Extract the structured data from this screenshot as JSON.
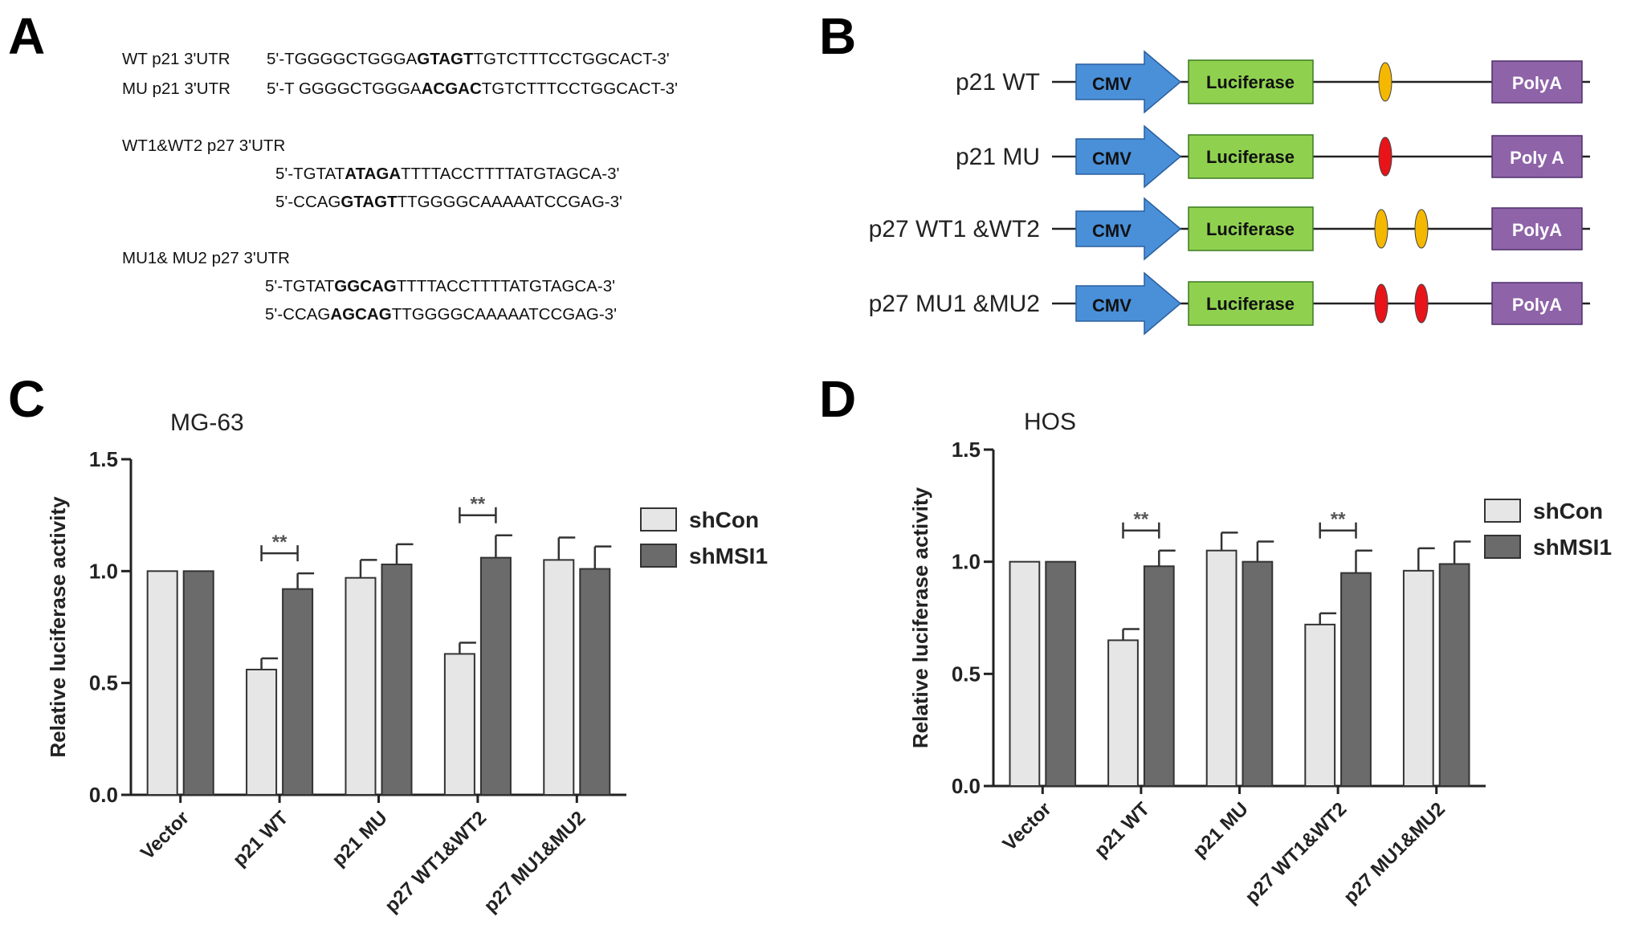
{
  "panels": {
    "A": "A",
    "B": "B",
    "C": "C",
    "D": "D"
  },
  "panel_a": {
    "wt_p21_label": "WT p21 3'UTR",
    "wt_p21_seq": [
      "5'-TGGGGCTGGGA",
      "GTAGT",
      "TGTCTTTCCTGGCACT-3'"
    ],
    "mu_p21_label": "MU p21 3'UTR",
    "mu_p21_seq": [
      "5'-T GGGGCTGGGA",
      "ACGAC",
      "TGTCTTTCCTGGCACT-3'"
    ],
    "wt_p27_label": "WT1&WT2 p27 3'UTR",
    "wt_p27_seq1": [
      "5'-TGTAT",
      "ATAGA",
      "TTTTACCTTTTATGTAGCA-3'"
    ],
    "wt_p27_seq2": [
      "5'-CCAG",
      "GTAGT",
      "TTGGGGCAAAAATCCGAG-3'"
    ],
    "mu_p27_label": "MU1& MU2 p27 3'UTR",
    "mu_p27_seq1": [
      "5'-TGTAT",
      "GGCAG",
      "TTTTACCTTTTATGTAGCA-3'"
    ],
    "mu_p27_seq2": [
      "5'-CCAG",
      "AGCAG",
      "TTGGGGCAAAAATCCGAG-3'"
    ]
  },
  "panel_b": {
    "constructs": [
      {
        "name": "p21 WT",
        "cmv": "CMV",
        "luc": "Luciferase",
        "polya": "PolyA",
        "sites": [
          "wt"
        ]
      },
      {
        "name": "p21 MU",
        "cmv": "CMV",
        "luc": "Luciferase",
        "polya": "Poly A",
        "sites": [
          "mu"
        ]
      },
      {
        "name": "p27 WT1 &WT2",
        "cmv": "CMV",
        "luc": "Luciferase",
        "polya": "PolyA",
        "sites": [
          "wt",
          "wt"
        ]
      },
      {
        "name": "p27 MU1 &MU2",
        "cmv": "CMV",
        "luc": "Luciferase",
        "polya": "PolyA",
        "sites": [
          "mu",
          "mu"
        ]
      }
    ],
    "colors": {
      "cmv": "#4a90d9",
      "luc": "#8fd14f",
      "polya": "#8e63a8",
      "wt_site": "#f5b800",
      "mu_site": "#e8141a"
    }
  },
  "chart_data": [
    {
      "type": "bar",
      "title": "MG-63",
      "ylabel": "Relative luciferase activity",
      "ylim": [
        0,
        1.5
      ],
      "yticks": [
        "0.0",
        "0.5",
        "1.0",
        "1.5"
      ],
      "categories": [
        "Vector",
        "p21 WT",
        "p21 MU",
        "p27 WT1&WT2",
        "p27 MU1&MU2"
      ],
      "series": [
        {
          "name": "shCon",
          "values": [
            1.0,
            0.56,
            0.97,
            0.63,
            1.05
          ],
          "errors": [
            0,
            0.05,
            0.08,
            0.05,
            0.1
          ],
          "color": "#e6e6e6"
        },
        {
          "name": "shMSI1",
          "values": [
            1.0,
            0.92,
            1.03,
            1.06,
            1.01
          ],
          "errors": [
            0,
            0.07,
            0.09,
            0.1,
            0.1
          ],
          "color": "#6b6b6b"
        }
      ],
      "significance": [
        {
          "category": "p21 WT",
          "label": "**"
        },
        {
          "category": "p27 WT1&WT2",
          "label": "**"
        }
      ],
      "legend": "right"
    },
    {
      "type": "bar",
      "title": "HOS",
      "ylabel": "Relative luciferase activity",
      "ylim": [
        0,
        1.5
      ],
      "yticks": [
        "0.0",
        "0.5",
        "1.0",
        "1.5"
      ],
      "categories": [
        "Vector",
        "p21 WT",
        "p21 MU",
        "p27 WT1&WT2",
        "p27 MU1&MU2"
      ],
      "series": [
        {
          "name": "shCon",
          "values": [
            1.0,
            0.65,
            1.05,
            0.72,
            0.96
          ],
          "errors": [
            0,
            0.05,
            0.08,
            0.05,
            0.1
          ],
          "color": "#e6e6e6"
        },
        {
          "name": "shMSI1",
          "values": [
            1.0,
            0.98,
            1.0,
            0.95,
            0.99
          ],
          "errors": [
            0,
            0.07,
            0.09,
            0.1,
            0.1
          ],
          "color": "#6b6b6b"
        }
      ],
      "significance": [
        {
          "category": "p21 WT",
          "label": "**"
        },
        {
          "category": "p27 WT1&WT2",
          "label": "**"
        }
      ],
      "legend": "right"
    }
  ]
}
